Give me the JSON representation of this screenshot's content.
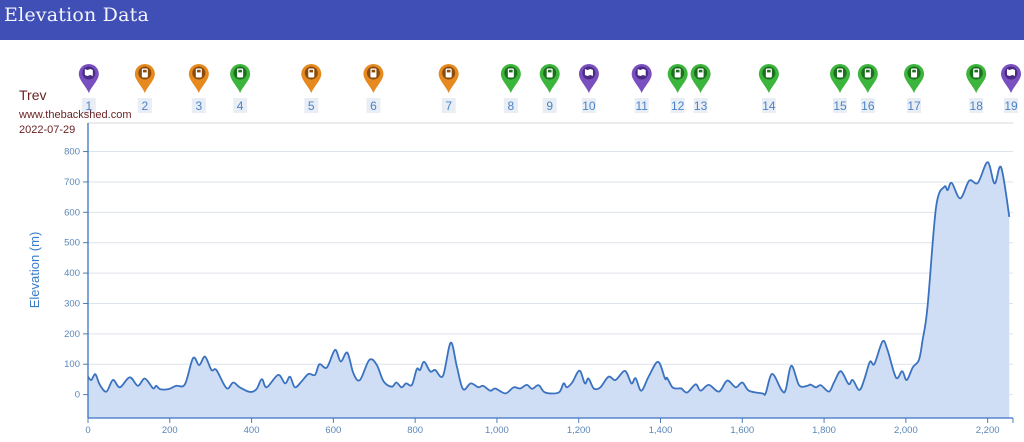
{
  "header": {
    "title": "Elevation Data"
  },
  "meta": {
    "author": "Trev",
    "website": "www.thebackshed.com",
    "date": "2022-07-29"
  },
  "colors": {
    "header": "#3f4fb6",
    "line": "#3a72c0",
    "fill": "#cfdef4",
    "purple": "#7a4fbf",
    "orange": "#e68a1f",
    "green": "#3cb53c"
  },
  "chart_data": {
    "type": "area",
    "title": "",
    "xlabel": "",
    "ylabel": "Elevation (m)",
    "xlim": [
      0,
      2262
    ],
    "ylim": [
      -77,
      894
    ],
    "grid": true,
    "xticks": [
      0,
      200,
      400,
      600,
      800,
      1000,
      1200,
      1400,
      1600,
      1800,
      2000,
      2200
    ],
    "xtick_labels": [
      "0",
      "200",
      "400",
      "600",
      "800",
      "1,000",
      "1,200",
      "1,400",
      "1,600",
      "1,800",
      "2,000",
      "2,200"
    ],
    "yticks": [
      0,
      100,
      200,
      300,
      400,
      500,
      600,
      700,
      800
    ],
    "ytick_labels": [
      "0",
      "100",
      "200",
      "300",
      "400",
      "500",
      "600",
      "700",
      "800"
    ],
    "x": [
      0,
      8,
      18,
      29,
      45,
      61,
      78,
      102,
      122,
      139,
      159,
      167,
      176,
      196,
      216,
      237,
      257,
      272,
      286,
      302,
      314,
      339,
      355,
      371,
      396,
      412,
      425,
      437,
      465,
      482,
      494,
      506,
      522,
      539,
      555,
      566,
      584,
      604,
      618,
      634,
      649,
      665,
      688,
      706,
      723,
      743,
      754,
      767,
      778,
      792,
      804,
      812,
      822,
      837,
      849,
      868,
      887,
      902,
      917,
      936,
      955,
      966,
      984,
      996,
      1021,
      1041,
      1057,
      1073,
      1086,
      1102,
      1118,
      1151,
      1163,
      1171,
      1184,
      1202,
      1215,
      1224,
      1237,
      1253,
      1273,
      1290,
      1313,
      1329,
      1339,
      1353,
      1371,
      1394,
      1411,
      1416,
      1429,
      1441,
      1451,
      1465,
      1486,
      1498,
      1518,
      1543,
      1563,
      1584,
      1600,
      1616,
      1649,
      1657,
      1673,
      1696,
      1706,
      1720,
      1739,
      1759,
      1767,
      1780,
      1792,
      1812,
      1825,
      1841,
      1860,
      1870,
      1886,
      1898,
      1912,
      1923,
      1943,
      1955,
      1976,
      1991,
      2002,
      2017,
      2032,
      2041,
      2053,
      2074,
      2094,
      2102,
      2112,
      2133,
      2155,
      2176,
      2200,
      2217,
      2233,
      2253
    ],
    "y": [
      59,
      48,
      67,
      32,
      10,
      48,
      24,
      57,
      29,
      53,
      21,
      29,
      18,
      18,
      29,
      34,
      120,
      97,
      125,
      81,
      81,
      21,
      40,
      24,
      9,
      18,
      51,
      24,
      65,
      37,
      59,
      24,
      43,
      68,
      65,
      100,
      89,
      147,
      109,
      138,
      70,
      48,
      114,
      98,
      43,
      26,
      40,
      24,
      37,
      32,
      84,
      81,
      108,
      76,
      81,
      62,
      171,
      92,
      18,
      37,
      24,
      29,
      13,
      20,
      4,
      24,
      20,
      32,
      19,
      31,
      7,
      7,
      37,
      24,
      40,
      79,
      37,
      53,
      20,
      24,
      59,
      48,
      78,
      37,
      54,
      13,
      59,
      108,
      53,
      55,
      24,
      20,
      20,
      7,
      34,
      13,
      32,
      10,
      46,
      24,
      40,
      13,
      4,
      4,
      68,
      15,
      15,
      95,
      31,
      29,
      33,
      24,
      31,
      10,
      42,
      77,
      35,
      48,
      15,
      48,
      108,
      101,
      175,
      147,
      56,
      77,
      48,
      90,
      114,
      180,
      289,
      618,
      684,
      673,
      697,
      646,
      704,
      697,
      765,
      695,
      748,
      585
    ],
    "markers": [
      {
        "label": "1",
        "type": "map",
        "color": "purple",
        "distance": 2
      },
      {
        "label": "2",
        "type": "fuel",
        "color": "orange",
        "distance": 139
      },
      {
        "label": "3",
        "type": "fuel",
        "color": "orange",
        "distance": 271
      },
      {
        "label": "4",
        "type": "fuel",
        "color": "green",
        "distance": 372
      },
      {
        "label": "5",
        "type": "fuel",
        "color": "orange",
        "distance": 546
      },
      {
        "label": "6",
        "type": "fuel",
        "color": "orange",
        "distance": 698
      },
      {
        "label": "7",
        "type": "fuel",
        "color": "orange",
        "distance": 882
      },
      {
        "label": "8",
        "type": "fuel",
        "color": "green",
        "distance": 1034
      },
      {
        "label": "9",
        "type": "fuel",
        "color": "green",
        "distance": 1129
      },
      {
        "label": "10",
        "type": "map",
        "color": "purple",
        "distance": 1225
      },
      {
        "label": "11",
        "type": "map",
        "color": "purple",
        "distance": 1354
      },
      {
        "label": "12",
        "type": "fuel",
        "color": "green",
        "distance": 1442
      },
      {
        "label": "13",
        "type": "fuel",
        "color": "green",
        "distance": 1498
      },
      {
        "label": "14",
        "type": "fuel",
        "color": "green",
        "distance": 1665
      },
      {
        "label": "15",
        "type": "fuel",
        "color": "green",
        "distance": 1839
      },
      {
        "label": "16",
        "type": "fuel",
        "color": "green",
        "distance": 1907
      },
      {
        "label": "17",
        "type": "fuel",
        "color": "green",
        "distance": 2020
      },
      {
        "label": "18",
        "type": "fuel",
        "color": "green",
        "distance": 2172
      },
      {
        "label": "19",
        "type": "map",
        "color": "purple",
        "distance": 2260
      }
    ]
  }
}
